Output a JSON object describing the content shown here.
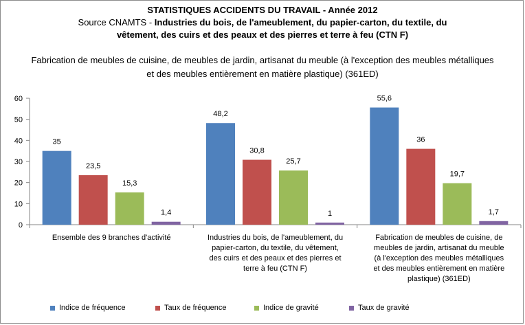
{
  "chart_data": {
    "type": "bar",
    "title_line1": "STATISTIQUES ACCIDENTS DU TRAVAIL - Année 2012",
    "title_source_prefix": "Source CNAMTS -",
    "title_source_bold_1": "Industries du bois, de l'ameublement, du papier-carton, du textile, du",
    "title_source_bold_2": "vêtement, des cuirs et des peaux et des pierres et terre à feu (CTN F)",
    "subtitle": "Fabrication de meubles de cuisine, de meubles de jardin, artisanat du meuble (à l'exception des meubles métalliques et des meubles entièrement en matière plastique) (361ED)",
    "categories": [
      "Ensemble des 9 branches d'activité",
      "Industries du bois, de l'ameublement, du papier-carton, du textile, du vêtement, des cuirs et des peaux et des pierres et terre à feu (CTN F)",
      "Fabrication de meubles de cuisine, de meubles de jardin, artisanat du meuble (à l'exception des meubles métalliques et des meubles entièrement en matière plastique) (361ED)"
    ],
    "category_label_lines": [
      [
        "Ensemble des 9 branches d'activité"
      ],
      [
        "Industries du bois, de l'ameublement, du",
        "papier-carton, du textile, du vêtement,",
        "des cuirs et des peaux et des pierres et",
        "terre à feu (CTN F)"
      ],
      [
        "Fabrication de meubles de cuisine, de",
        "meubles de jardin, artisanat du meuble",
        "(à l'exception des meubles métalliques",
        "et des meubles entièrement en matière",
        "plastique) (361ED)"
      ]
    ],
    "series": [
      {
        "name": "Indice de fréquence",
        "color": "#4f81bd",
        "values": [
          35,
          48.2,
          55.6
        ],
        "labels": [
          "35",
          "48,2",
          "55,6"
        ]
      },
      {
        "name": "Taux de fréquence",
        "color": "#c0504d",
        "values": [
          23.5,
          30.8,
          36
        ],
        "labels": [
          "23,5",
          "30,8",
          "36"
        ]
      },
      {
        "name": "Indice de gravité",
        "color": "#9bbb59",
        "values": [
          15.3,
          25.7,
          19.7
        ],
        "labels": [
          "15,3",
          "25,7",
          "19,7"
        ]
      },
      {
        "name": "Taux de gravité",
        "color": "#8064a2",
        "values": [
          1.4,
          1,
          1.7
        ],
        "labels": [
          "1,4",
          "1",
          "1,7"
        ]
      }
    ],
    "y_ticks": [
      "0",
      "10",
      "20",
      "30",
      "40",
      "50",
      "60"
    ],
    "ylim": [
      0,
      60
    ],
    "grid": false,
    "legend_position": "bottom"
  }
}
